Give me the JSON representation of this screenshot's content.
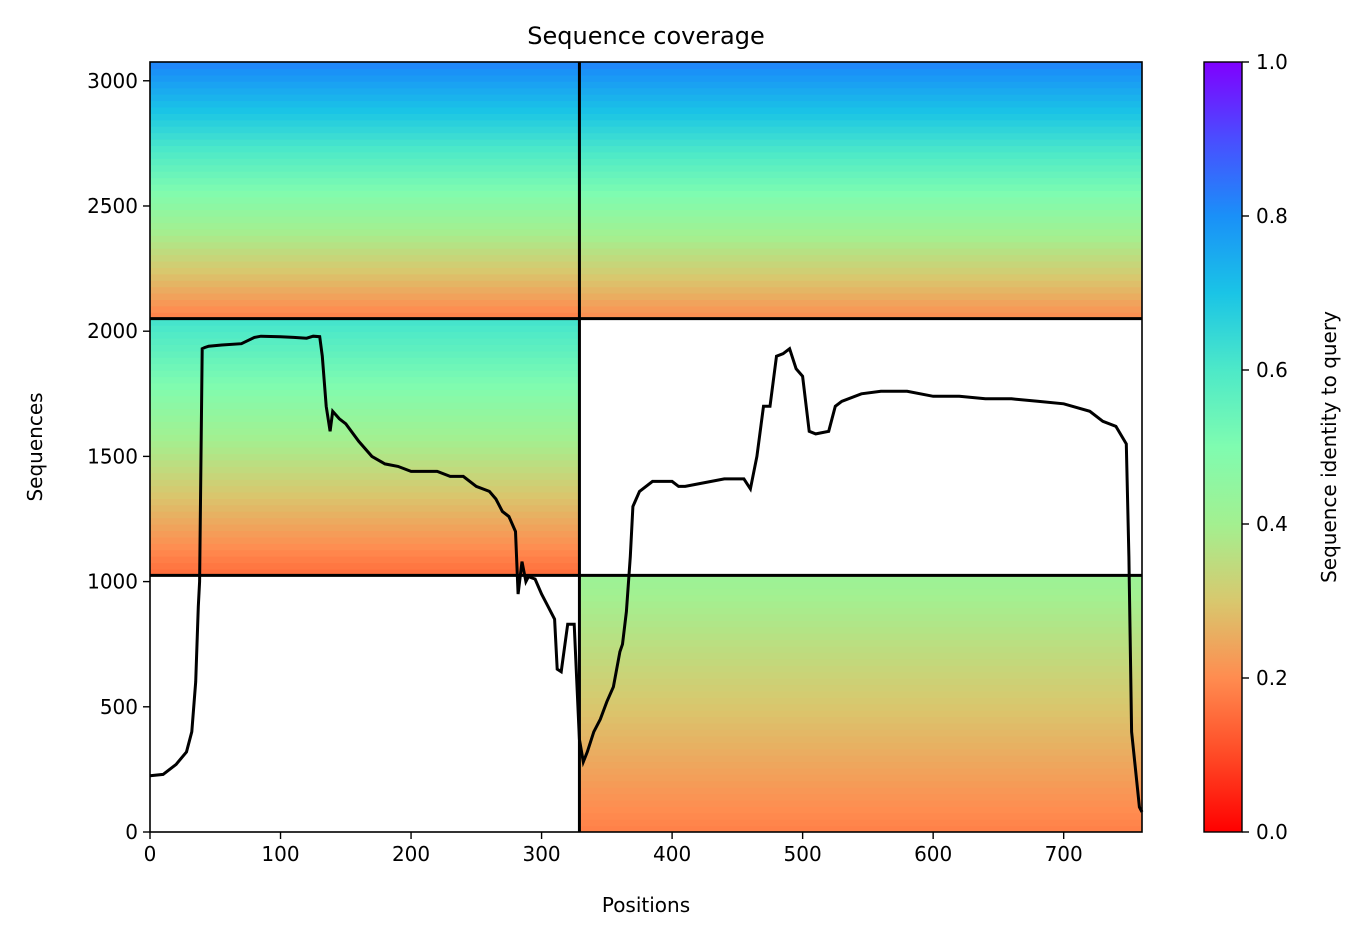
{
  "chart_data": {
    "type": "heatmap",
    "title": "Sequence coverage",
    "xlabel": "Positions",
    "ylabel": "Sequences",
    "xlim": [
      0,
      760
    ],
    "ylim": [
      0,
      3075
    ],
    "xticks": [
      0,
      100,
      200,
      300,
      400,
      500,
      600,
      700
    ],
    "yticks": [
      0,
      500,
      1000,
      1500,
      2000,
      2500,
      3000
    ],
    "colorbar": {
      "label": "Sequence identity to query",
      "range": [
        0,
        1
      ],
      "ticks": [
        "0.0",
        "0.2",
        "0.4",
        "0.6",
        "0.8",
        "1.0"
      ],
      "colormap": "rainbow_r"
    },
    "chain_boundary_x": 329,
    "block_boundaries_y": [
      1025,
      2050
    ],
    "coverage_blocks": [
      {
        "x": [
          0,
          329
        ],
        "y": [
          2050,
          3075
        ],
        "identity_top": 0.82,
        "identity_bottom": 0.18
      },
      {
        "x": [
          329,
          760
        ],
        "y": [
          2050,
          3075
        ],
        "identity_top": 0.82,
        "identity_bottom": 0.2
      },
      {
        "x": [
          0,
          329
        ],
        "y": [
          1025,
          2050
        ],
        "identity_top": 0.62,
        "identity_bottom": 0.15
      },
      {
        "x": [
          329,
          760
        ],
        "y": [
          0,
          1025
        ],
        "identity_top": 0.42,
        "identity_bottom": 0.18
      }
    ],
    "coverage_line": {
      "x": [
        0,
        10,
        20,
        28,
        32,
        35,
        37,
        38,
        40,
        42,
        45,
        55,
        70,
        80,
        85,
        100,
        110,
        120,
        125,
        130,
        132,
        135,
        138,
        140,
        145,
        150,
        160,
        170,
        180,
        190,
        200,
        220,
        230,
        240,
        250,
        255,
        260,
        265,
        270,
        275,
        280,
        282,
        285,
        288,
        290,
        295,
        300,
        305,
        310,
        312,
        315,
        320,
        325,
        329,
        332,
        335,
        340,
        345,
        350,
        355,
        360,
        362,
        365,
        368,
        370,
        375,
        385,
        400,
        405,
        410,
        420,
        430,
        440,
        455,
        460,
        465,
        470,
        475,
        480,
        485,
        490,
        495,
        500,
        505,
        510,
        520,
        525,
        530,
        545,
        560,
        580,
        600,
        620,
        640,
        660,
        680,
        700,
        720,
        730,
        740,
        748,
        750,
        752,
        756,
        758,
        760
      ],
      "y": [
        225,
        230,
        270,
        320,
        400,
        600,
        900,
        1000,
        1930,
        1935,
        1940,
        1945,
        1950,
        1975,
        1980,
        1978,
        1975,
        1972,
        1980,
        1978,
        1900,
        1700,
        1600,
        1680,
        1650,
        1630,
        1560,
        1500,
        1470,
        1460,
        1440,
        1440,
        1420,
        1420,
        1380,
        1370,
        1360,
        1330,
        1280,
        1260,
        1200,
        950,
        1080,
        1000,
        1020,
        1010,
        950,
        900,
        850,
        650,
        640,
        830,
        830,
        370,
        280,
        320,
        400,
        450,
        520,
        580,
        720,
        750,
        880,
        1100,
        1300,
        1360,
        1400,
        1400,
        1380,
        1380,
        1390,
        1400,
        1410,
        1410,
        1370,
        1500,
        1700,
        1700,
        1900,
        1910,
        1930,
        1850,
        1820,
        1600,
        1590,
        1600,
        1700,
        1720,
        1750,
        1760,
        1760,
        1740,
        1740,
        1730,
        1730,
        1720,
        1710,
        1680,
        1640,
        1620,
        1550,
        1100,
        400,
        200,
        100,
        80
      ]
    }
  }
}
